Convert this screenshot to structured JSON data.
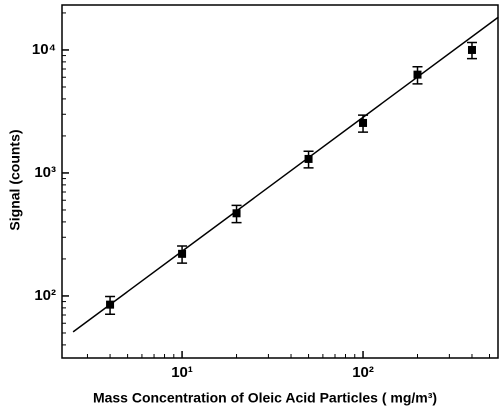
{
  "chart_data": {
    "type": "scatter",
    "xlabel": "Mass Concentration of Oleic Acid Particles ( mg/m³)",
    "ylabel": "Signal (counts)",
    "xscale": "log",
    "yscale": "log",
    "xlim": [
      2.17,
      557
    ],
    "ylim": [
      31.3,
      23200
    ],
    "xticks": [
      {
        "value": 10,
        "label": "10¹"
      },
      {
        "value": 100,
        "label": "10²"
      }
    ],
    "yticks": [
      {
        "value": 100,
        "label": "10²"
      },
      {
        "value": 1000,
        "label": "10³"
      },
      {
        "value": 10000,
        "label": "10⁴"
      }
    ],
    "xminorticks": [
      3,
      4,
      5,
      6,
      7,
      8,
      9,
      20,
      30,
      40,
      50,
      60,
      70,
      80,
      90,
      200,
      300,
      400,
      500
    ],
    "yminorticks": [
      40,
      50,
      60,
      70,
      80,
      90,
      200,
      300,
      400,
      500,
      600,
      700,
      800,
      900,
      2000,
      3000,
      4000,
      5000,
      6000,
      7000,
      8000,
      9000,
      20000
    ],
    "points": {
      "color": "#000000",
      "x": [
        4,
        10,
        20,
        50,
        100,
        200,
        400
      ],
      "values": [
        85,
        220,
        470,
        1300,
        2550,
        6300,
        10000
      ],
      "errors": [
        14,
        35,
        75,
        200,
        400,
        1000,
        1500
      ]
    },
    "fit": {
      "color": "#000000",
      "x": [
        2.5,
        560
      ],
      "values": [
        51,
        18500
      ]
    }
  }
}
